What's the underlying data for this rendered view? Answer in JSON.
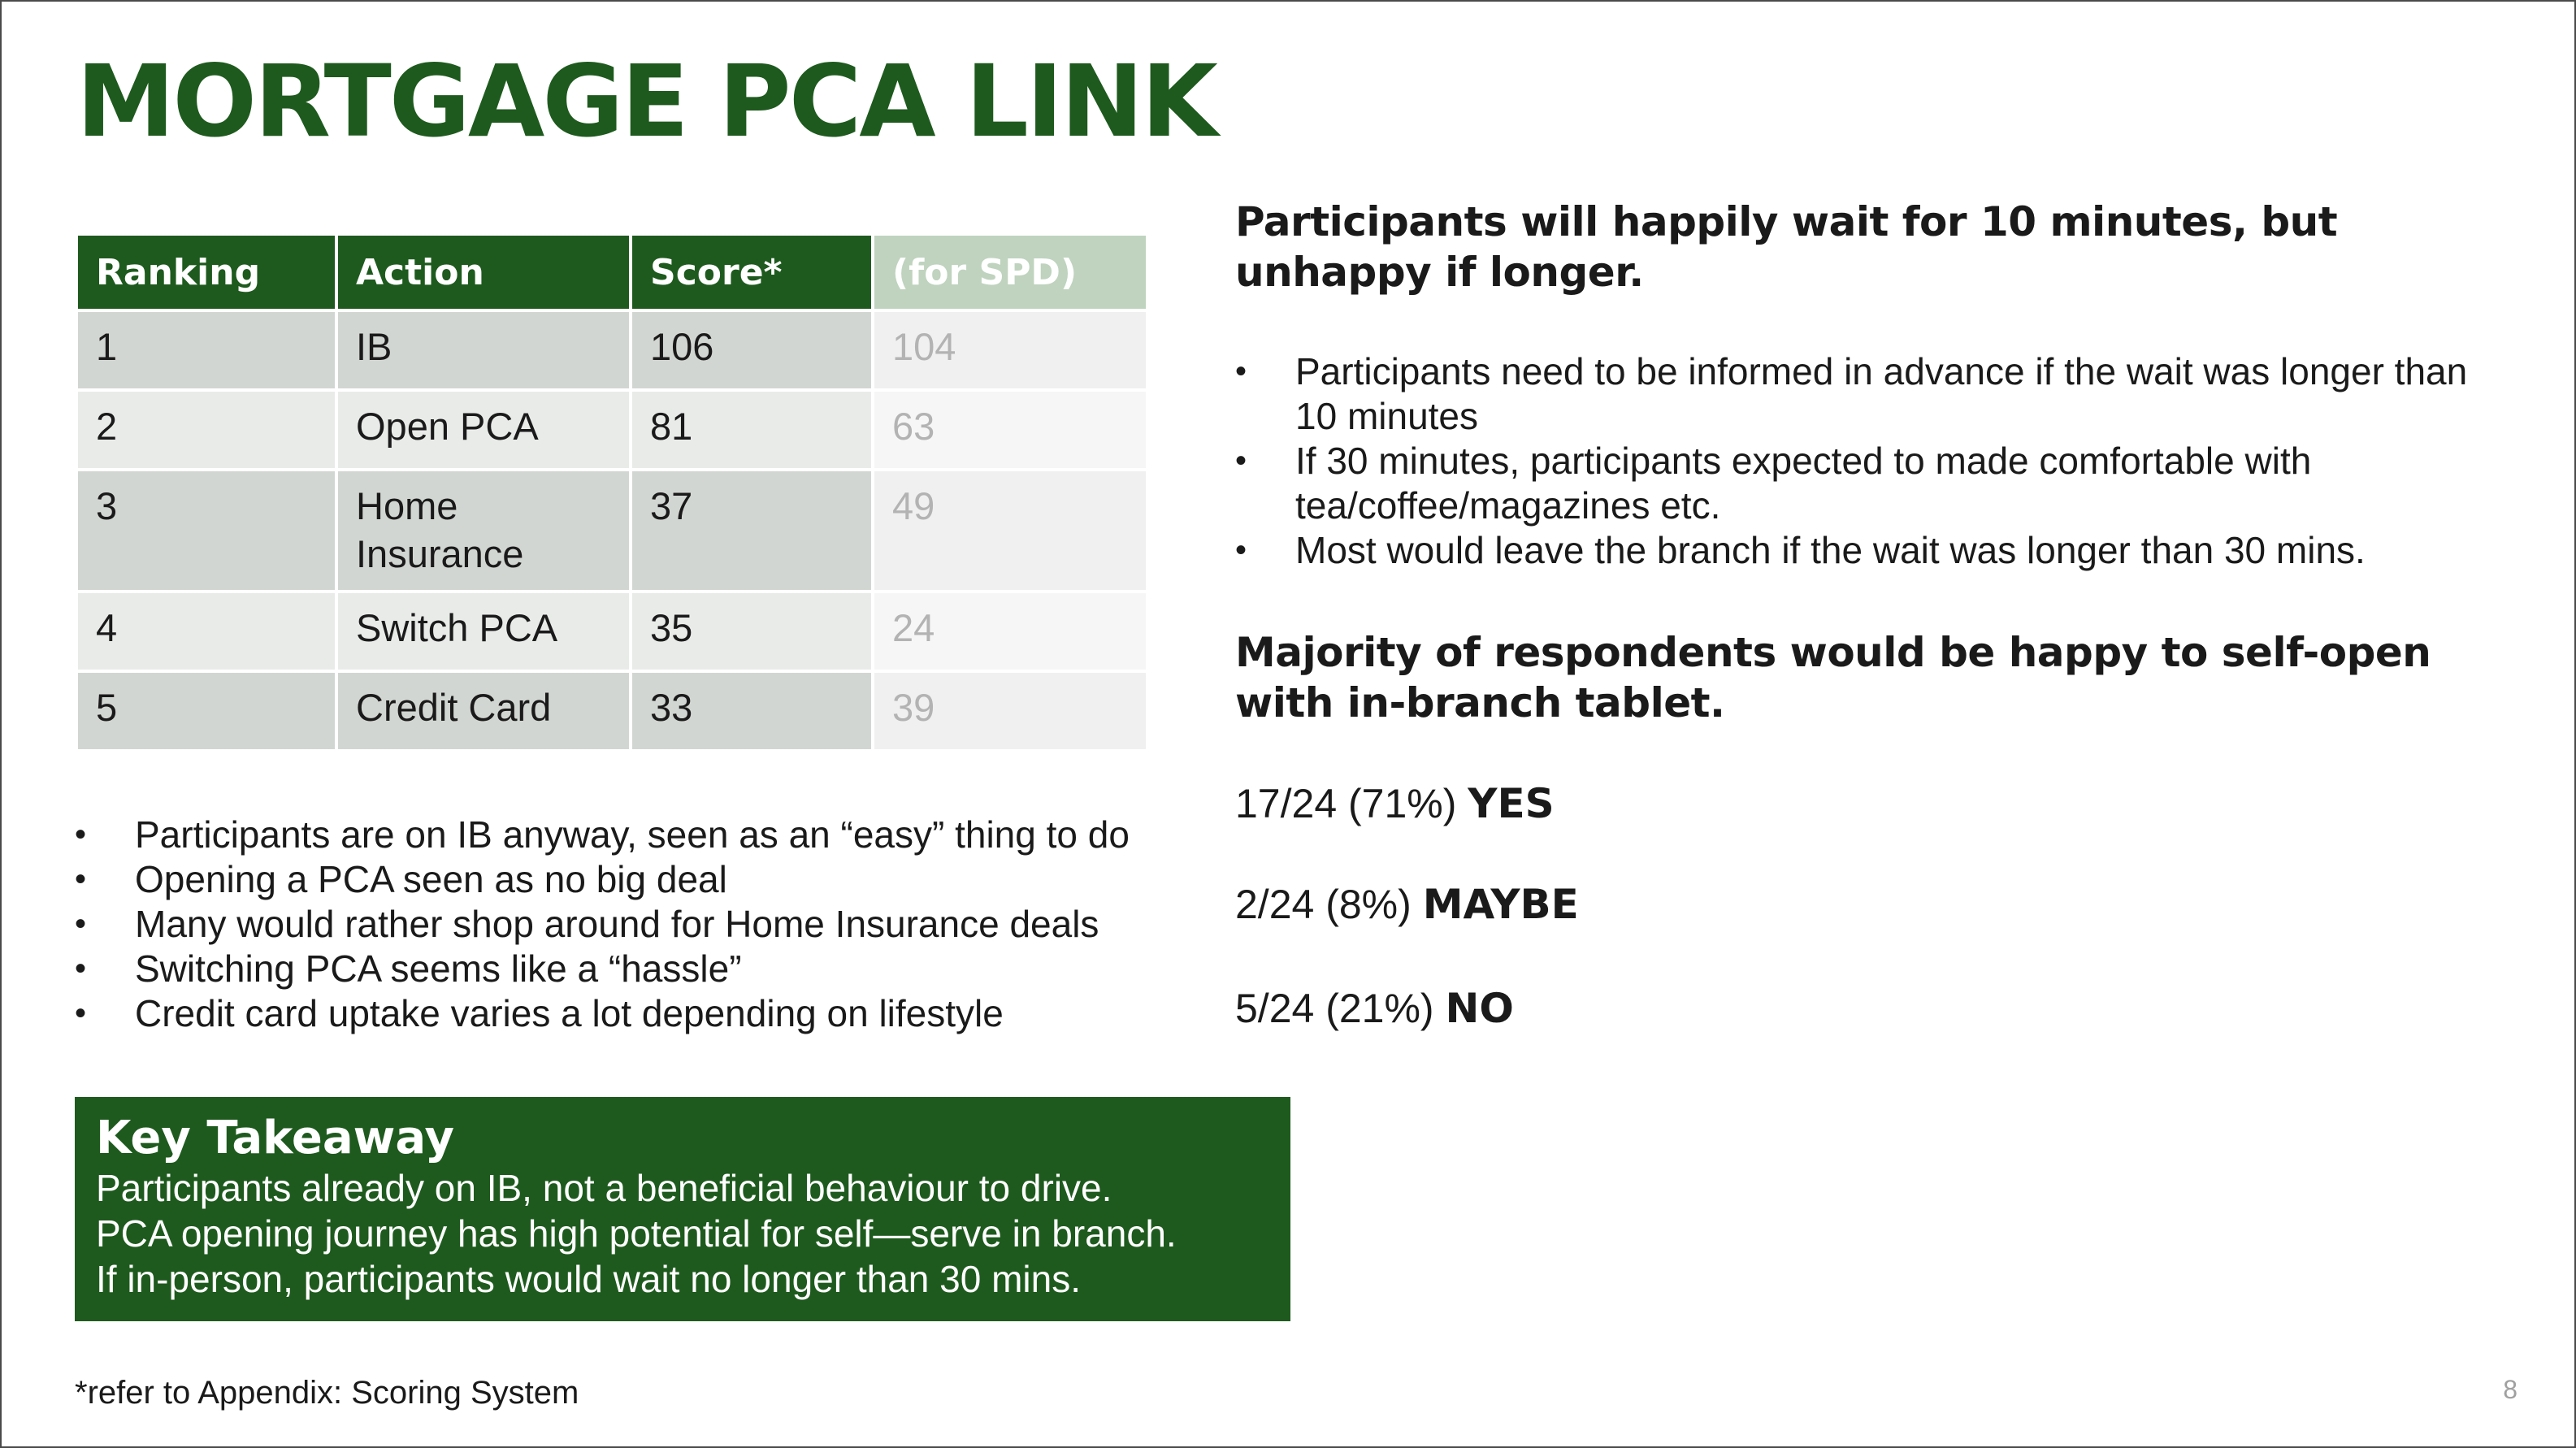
{
  "title": "MORTGAGE PCA LINK",
  "table": {
    "headers": [
      "Ranking",
      "Action",
      "Score*",
      "(for SPD)"
    ],
    "rows": [
      {
        "ranking": "1",
        "action": "IB",
        "score": "106",
        "spd": "104"
      },
      {
        "ranking": "2",
        "action": "Open PCA",
        "score": "81",
        "spd": "63"
      },
      {
        "ranking": "3",
        "action": "Home Insurance",
        "score": "37",
        "spd": "49"
      },
      {
        "ranking": "4",
        "action": "Switch PCA",
        "score": "35",
        "spd": "24"
      },
      {
        "ranking": "5",
        "action": "Credit Card",
        "score": "33",
        "spd": "39"
      }
    ]
  },
  "left_bullets": [
    "Participants are on IB anyway, seen as an “easy” thing to do",
    "Opening a PCA seen as no big deal",
    "Many would rather shop around for Home Insurance deals",
    "Switching PCA seems like a “hassle”",
    "Credit card uptake varies a lot depending on lifestyle"
  ],
  "key_takeaway": {
    "title": "Key Takeaway",
    "lines": [
      "Participants already on IB, not a beneficial behaviour to drive.",
      "PCA opening journey has high potential for self—serve in branch.",
      "If in-person, participants would wait no longer than 30 mins."
    ]
  },
  "right": {
    "heading1": "Participants will happily wait for 10 minutes, but unhappy if longer.",
    "bullets": [
      "Participants need to be informed in advance if the wait was longer than 10 minutes",
      "If 30 minutes, participants expected to made comfortable with tea/coffee/magazines etc.",
      "Most would leave the branch if the wait was longer than 30 mins."
    ],
    "heading2": "Majority of respondents would be happy to self-open with in-branch tablet.",
    "stats": [
      {
        "value": "17/24 (71%)",
        "label": "YES"
      },
      {
        "value": "2/24 (8%)",
        "label": "MAYBE"
      },
      {
        "value": "5/24 (21%)",
        "label": "NO"
      }
    ]
  },
  "footnote": "*refer to Appendix: Scoring System",
  "page_number": "8"
}
